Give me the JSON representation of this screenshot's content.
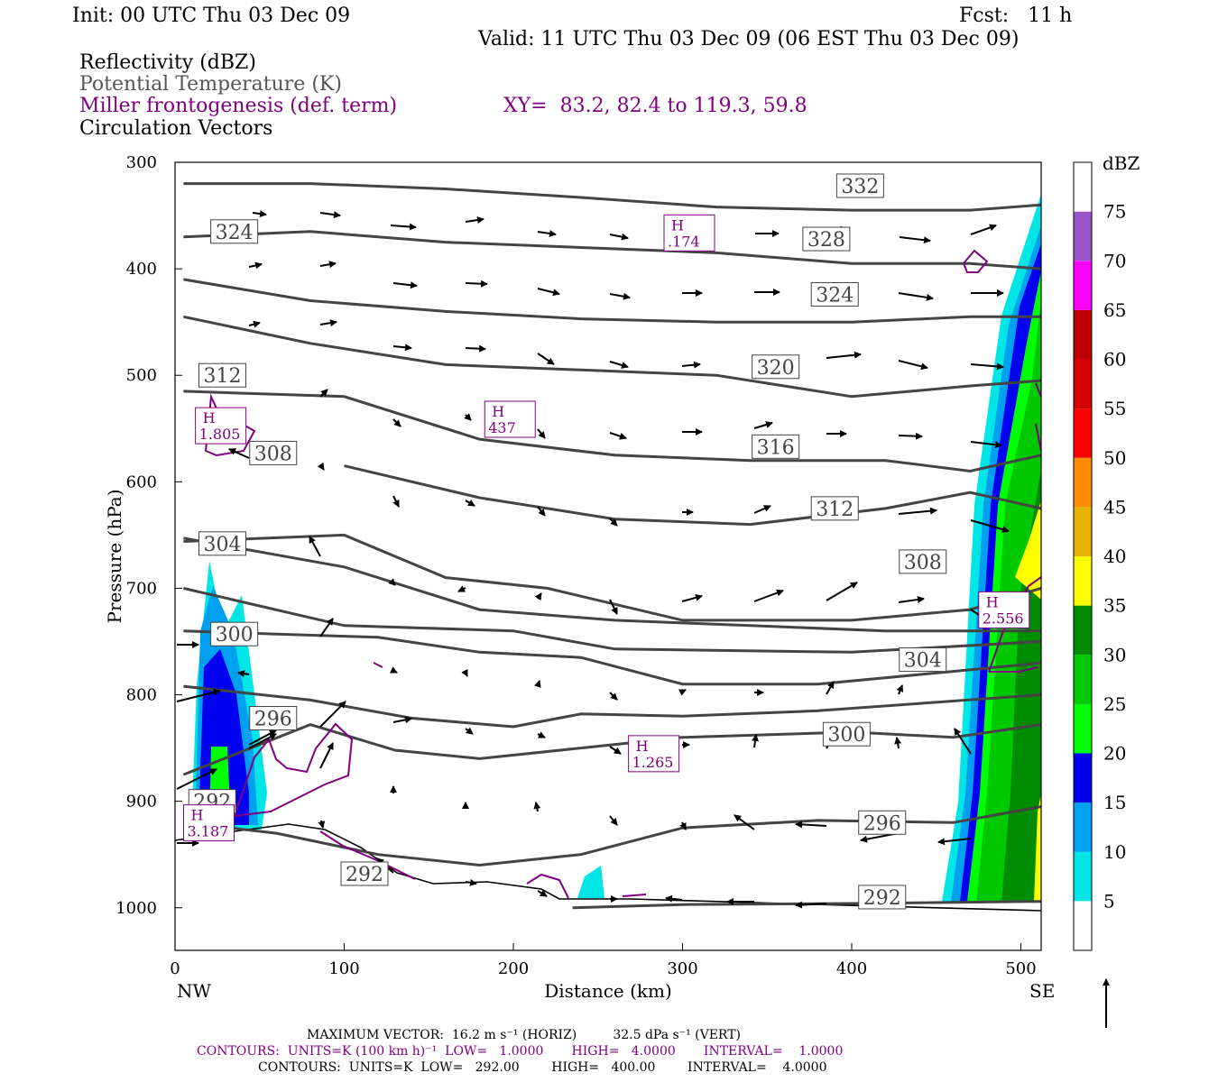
{
  "header": {
    "init": "Init: 00 UTC Thu 03 Dec 09",
    "fcst": "Fcst:   11 h",
    "valid": "Valid: 11 UTC Thu 03 Dec 09 (06 EST Thu 03 Dec 09)",
    "fields": [
      {
        "label": "Reflectivity (dBZ)",
        "color": "#000000"
      },
      {
        "label": "Potential Temperature (K)",
        "color": "#555555"
      },
      {
        "label": "Miller frontogenesis (def. term)",
        "color": "#800080"
      },
      {
        "label": "Circulation Vectors",
        "color": "#000000"
      }
    ],
    "xy": "XY=  83.2, 82.4 to 119.3, 59.8"
  },
  "chart_data": {
    "type": "cross-section",
    "xlabel": "Distance (km)",
    "ylabel": "Pressure (hPa)",
    "x_ticks": [
      "0",
      "100",
      "200",
      "300",
      "400",
      "500"
    ],
    "y_ticks": [
      "300",
      "400",
      "500",
      "600",
      "700",
      "800",
      "900",
      "1000"
    ],
    "xlim": [
      0,
      512
    ],
    "ylim": [
      300,
      1040
    ],
    "endpoints": {
      "left": "NW",
      "right": "SE"
    },
    "theta_contours": [
      {
        "label": "292",
        "points": [
          [
            235,
            1000
          ],
          [
            300,
            997
          ],
          [
            400,
            996
          ],
          [
            512,
            994
          ]
        ]
      },
      {
        "label": "296",
        "points": [
          [
            5,
            920
          ],
          [
            60,
            930
          ],
          [
            120,
            950
          ],
          [
            180,
            960
          ],
          [
            240,
            950
          ],
          [
            300,
            925
          ],
          [
            380,
            918
          ],
          [
            460,
            920
          ],
          [
            512,
            905
          ]
        ]
      },
      {
        "label": "300",
        "points": [
          [
            5,
            875
          ],
          [
            80,
            828
          ],
          [
            130,
            852
          ],
          [
            180,
            860
          ],
          [
            240,
            850
          ],
          [
            300,
            840
          ],
          [
            400,
            835
          ],
          [
            460,
            840
          ],
          [
            512,
            828
          ]
        ]
      },
      {
        "label": "",
        "points": [
          [
            5,
            792
          ],
          [
            80,
            805
          ],
          [
            140,
            822
          ],
          [
            200,
            830
          ],
          [
            240,
            818
          ],
          [
            300,
            820
          ],
          [
            380,
            815
          ],
          [
            512,
            800
          ]
        ]
      },
      {
        "label": "304",
        "points": [
          [
            5,
            740
          ],
          [
            60,
            743
          ],
          [
            120,
            746
          ],
          [
            180,
            760
          ],
          [
            240,
            765
          ],
          [
            300,
            790
          ],
          [
            380,
            790
          ],
          [
            460,
            778
          ],
          [
            512,
            770
          ]
        ]
      },
      {
        "label": "",
        "points": [
          [
            5,
            700
          ],
          [
            100,
            735
          ],
          [
            200,
            740
          ],
          [
            260,
            757
          ],
          [
            400,
            760
          ],
          [
            512,
            750
          ]
        ]
      },
      {
        "label": "",
        "points": [
          [
            5,
            653
          ],
          [
            100,
            680
          ],
          [
            180,
            720
          ],
          [
            260,
            730
          ],
          [
            340,
            735
          ],
          [
            420,
            740
          ],
          [
            512,
            740
          ]
        ]
      },
      {
        "label": "308",
        "points": [
          [
            5,
            656
          ],
          [
            100,
            650
          ],
          [
            160,
            690
          ],
          [
            220,
            700
          ],
          [
            300,
            730
          ],
          [
            400,
            730
          ],
          [
            470,
            720
          ],
          [
            512,
            700
          ]
        ]
      },
      {
        "label": "312",
        "points": [
          [
            100,
            585
          ],
          [
            180,
            615
          ],
          [
            260,
            635
          ],
          [
            340,
            640
          ],
          [
            420,
            625
          ],
          [
            470,
            610
          ],
          [
            512,
            625
          ]
        ]
      },
      {
        "label": "316",
        "points": [
          [
            5,
            515
          ],
          [
            100,
            520
          ],
          [
            180,
            560
          ],
          [
            260,
            575
          ],
          [
            340,
            580
          ],
          [
            420,
            580
          ],
          [
            470,
            590
          ],
          [
            512,
            575
          ]
        ]
      },
      {
        "label": "320",
        "points": [
          [
            5,
            445
          ],
          [
            80,
            470
          ],
          [
            160,
            490
          ],
          [
            240,
            495
          ],
          [
            320,
            500
          ],
          [
            400,
            520
          ],
          [
            470,
            510
          ],
          [
            512,
            505
          ]
        ]
      },
      {
        "label": "324",
        "points": [
          [
            5,
            410
          ],
          [
            80,
            430
          ],
          [
            160,
            440
          ],
          [
            240,
            447
          ],
          [
            320,
            450
          ],
          [
            400,
            450
          ],
          [
            470,
            445
          ],
          [
            512,
            445
          ]
        ]
      },
      {
        "label": "328",
        "points": [
          [
            5,
            370
          ],
          [
            80,
            365
          ],
          [
            160,
            375
          ],
          [
            240,
            380
          ],
          [
            320,
            385
          ],
          [
            400,
            395
          ],
          [
            470,
            395
          ],
          [
            512,
            400
          ]
        ]
      },
      {
        "label": "332",
        "points": [
          [
            5,
            320
          ],
          [
            80,
            320
          ],
          [
            160,
            325
          ],
          [
            240,
            333
          ],
          [
            320,
            342
          ],
          [
            400,
            345
          ],
          [
            470,
            345
          ],
          [
            512,
            340
          ]
        ]
      }
    ],
    "theta_labels": [
      {
        "value": "332",
        "x": 405,
        "p": 322
      },
      {
        "value": "324",
        "x": 35,
        "p": 365
      },
      {
        "value": "328",
        "x": 385,
        "p": 372
      },
      {
        "value": "324",
        "x": 390,
        "p": 424
      },
      {
        "value": "312",
        "x": 28,
        "p": 500
      },
      {
        "value": "320",
        "x": 355,
        "p": 492
      },
      {
        "value": "308",
        "x": 58,
        "p": 573
      },
      {
        "value": "316",
        "x": 355,
        "p": 567
      },
      {
        "value": "312",
        "x": 390,
        "p": 625
      },
      {
        "value": "304",
        "x": 28,
        "p": 658
      },
      {
        "value": "308",
        "x": 442,
        "p": 675
      },
      {
        "value": "300",
        "x": 35,
        "p": 743
      },
      {
        "value": "304",
        "x": 442,
        "p": 767
      },
      {
        "value": "296",
        "x": 58,
        "p": 822
      },
      {
        "value": "300",
        "x": 397,
        "p": 837
      },
      {
        "value": "292",
        "x": 22,
        "p": 900
      },
      {
        "value": "292",
        "x": 112,
        "p": 968
      },
      {
        "value": "296",
        "x": 418,
        "p": 920
      },
      {
        "value": "292",
        "x": 418,
        "p": 990
      }
    ],
    "frontogenesis_maxima": [
      {
        "label": "H",
        "value": ".174",
        "x": 304,
        "p": 368
      },
      {
        "label": "H",
        "value": "1.805",
        "x": 27,
        "p": 549
      },
      {
        "label": "H",
        "value": "437",
        "x": 198,
        "p": 543
      },
      {
        "label": "H",
        "value": "2.556",
        "x": 490,
        "p": 722
      },
      {
        "label": "H",
        "value": "1.265",
        "x": 283,
        "p": 857
      },
      {
        "label": "H",
        "value": "3.187",
        "x": 20,
        "p": 922
      }
    ],
    "reflectivity_scale": {
      "unit": "dBZ",
      "levels": [
        "5",
        "10",
        "15",
        "20",
        "25",
        "30",
        "35",
        "40",
        "45",
        "50",
        "55",
        "60",
        "65",
        "70",
        "75"
      ],
      "colors": [
        "#ffffff",
        "#00e6e6",
        "#00a0f0",
        "#0000f0",
        "#00ff00",
        "#00c800",
        "#008c00",
        "#ffff00",
        "#e6b400",
        "#ff8c00",
        "#ff0000",
        "#d40000",
        "#be0000",
        "#ff00ff",
        "#9955c9",
        "#ffffff"
      ]
    },
    "max_vector": "MAXIMUM VECTOR:  16.2 m s⁻¹ (HORIZ)         32.5 dPa s⁻¹ (VERT)",
    "contours_purple": "CONTOURS:  UNITS=K (100 km h)⁻¹  LOW=   1.0000       HIGH=   4.0000       INTERVAL=    1.0000",
    "contours_black": "CONTOURS:  UNITS=K  LOW=   292.00        HIGH=   400.00        INTERVAL=    4.0000"
  }
}
